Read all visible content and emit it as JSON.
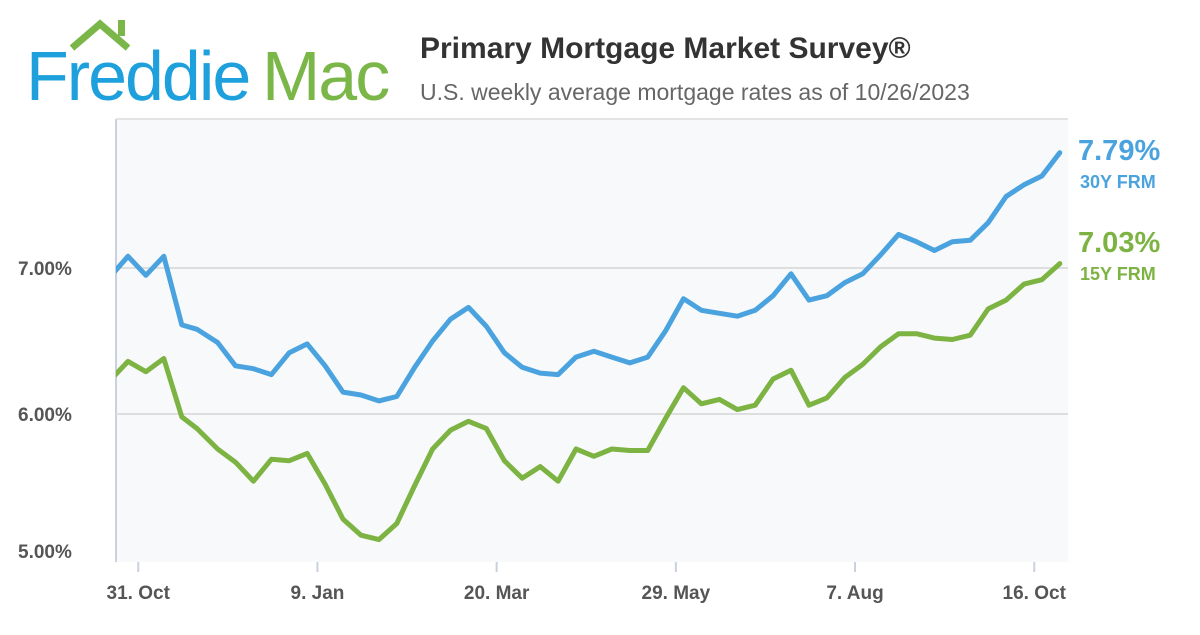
{
  "logo": {
    "text_blue": "Freddie",
    "text_green": "Mac",
    "blue": "#1ea0dc",
    "green": "#7ab648"
  },
  "header": {
    "title": "Primary Mortgage Market Survey®",
    "subtitle": "U.S. weekly average mortgage rates as of 10/26/2023"
  },
  "chart_data": {
    "type": "line",
    "title": "Primary Mortgage Market Survey®",
    "subtitle": "U.S. weekly average mortgage rates as of 10/26/2023",
    "xlabel": "",
    "ylabel": "",
    "ylim": [
      5.0,
      8.0
    ],
    "y_ticks": [
      {
        "value": 5.0,
        "label": "5.00%"
      },
      {
        "value": 6.0,
        "label": "6.00%"
      },
      {
        "value": 7.0,
        "label": "7.00%"
      }
    ],
    "x_ticks": [
      {
        "date": "2022-10-31",
        "label": "31. Oct"
      },
      {
        "date": "2023-01-09",
        "label": "9. Jan"
      },
      {
        "date": "2023-03-20",
        "label": "20. Mar"
      },
      {
        "date": "2023-05-29",
        "label": "29. May"
      },
      {
        "date": "2023-08-07",
        "label": "7. Aug"
      },
      {
        "date": "2023-10-16",
        "label": "16. Oct"
      }
    ],
    "grid": true,
    "legend": "end-labels-right",
    "x": [
      "2022-10-20",
      "2022-10-27",
      "2022-11-03",
      "2022-11-10",
      "2022-11-17",
      "2022-11-23",
      "2022-12-01",
      "2022-12-08",
      "2022-12-15",
      "2022-12-22",
      "2022-12-29",
      "2023-01-05",
      "2023-01-12",
      "2023-01-19",
      "2023-01-26",
      "2023-02-02",
      "2023-02-09",
      "2023-02-16",
      "2023-02-23",
      "2023-03-02",
      "2023-03-09",
      "2023-03-16",
      "2023-03-23",
      "2023-03-30",
      "2023-04-06",
      "2023-04-13",
      "2023-04-20",
      "2023-04-27",
      "2023-05-04",
      "2023-05-11",
      "2023-05-18",
      "2023-05-25",
      "2023-06-01",
      "2023-06-08",
      "2023-06-15",
      "2023-06-22",
      "2023-06-29",
      "2023-07-06",
      "2023-07-13",
      "2023-07-20",
      "2023-07-27",
      "2023-08-03",
      "2023-08-10",
      "2023-08-17",
      "2023-08-24",
      "2023-08-31",
      "2023-09-07",
      "2023-09-14",
      "2023-09-21",
      "2023-09-28",
      "2023-10-05",
      "2023-10-12",
      "2023-10-19",
      "2023-10-26"
    ],
    "series": [
      {
        "name": "30Y FRM",
        "last_label": "7.79%",
        "color": "#4aa3df",
        "values": [
          6.94,
          7.08,
          6.95,
          7.08,
          6.61,
          6.58,
          6.49,
          6.33,
          6.31,
          6.27,
          6.42,
          6.48,
          6.33,
          6.15,
          6.13,
          6.09,
          6.12,
          6.32,
          6.5,
          6.65,
          6.73,
          6.6,
          6.42,
          6.32,
          6.28,
          6.27,
          6.39,
          6.43,
          6.39,
          6.35,
          6.39,
          6.57,
          6.79,
          6.71,
          6.69,
          6.67,
          6.71,
          6.81,
          6.96,
          6.78,
          6.81,
          6.9,
          6.96,
          7.09,
          7.23,
          7.18,
          7.12,
          7.18,
          7.19,
          7.31,
          7.49,
          7.57,
          7.63,
          7.79
        ]
      },
      {
        "name": "15Y FRM",
        "last_label": "7.03%",
        "color": "#7cb342",
        "values": [
          6.23,
          6.36,
          6.29,
          6.38,
          5.98,
          5.9,
          5.76,
          5.67,
          5.54,
          5.69,
          5.68,
          5.73,
          5.52,
          5.28,
          5.17,
          5.14,
          5.25,
          5.51,
          5.76,
          5.89,
          5.95,
          5.9,
          5.68,
          5.56,
          5.64,
          5.54,
          5.76,
          5.71,
          5.76,
          5.75,
          5.75,
          5.97,
          6.18,
          6.07,
          6.1,
          6.03,
          6.06,
          6.24,
          6.3,
          6.06,
          6.11,
          6.25,
          6.34,
          6.46,
          6.55,
          6.55,
          6.52,
          6.51,
          6.54,
          6.72,
          6.78,
          6.89,
          6.92,
          7.03
        ]
      }
    ]
  }
}
